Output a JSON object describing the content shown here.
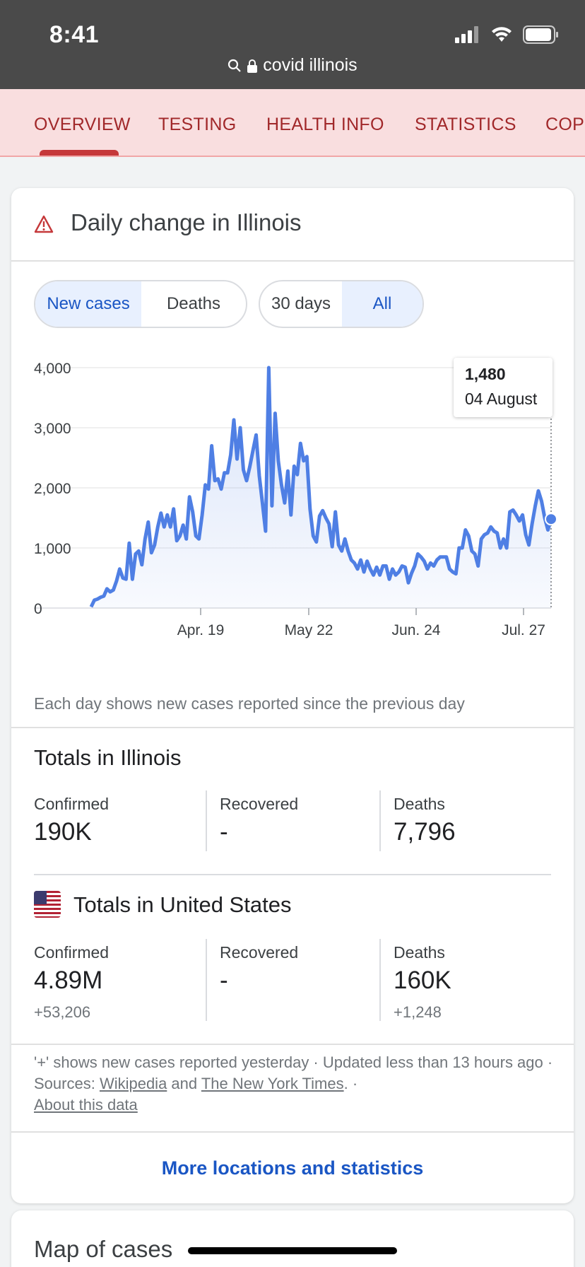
{
  "status": {
    "time": "8:41",
    "url": "covid illinois"
  },
  "tabs": [
    "OVERVIEW",
    "TESTING",
    "HEALTH INFO",
    "STATISTICS",
    "COPING"
  ],
  "card": {
    "title": "Daily change in Illinois",
    "toggle_metric": [
      "New cases",
      "Deaths"
    ],
    "toggle_range": [
      "30 days",
      "All"
    ],
    "tooltip": {
      "value": "1,480",
      "date": "04 August"
    },
    "note": "Each day shows new cases reported since the previous day"
  },
  "chart_data": {
    "type": "line",
    "title": "Daily change in Illinois",
    "ylim": [
      0,
      4000
    ],
    "yticks": [
      "4,000",
      "3,000",
      "2,000",
      "1,000",
      "0"
    ],
    "xticks": [
      "Apr. 19",
      "May 22",
      "Jun. 24",
      "Jul. 27"
    ],
    "series": [
      {
        "name": "New cases",
        "values": [
          20,
          130,
          150,
          180,
          200,
          320,
          270,
          300,
          450,
          650,
          500,
          480,
          1080,
          480,
          900,
          950,
          720,
          1150,
          1430,
          920,
          1050,
          1350,
          1580,
          1350,
          1550,
          1350,
          1650,
          1120,
          1200,
          1380,
          1150,
          1850,
          1600,
          1200,
          1150,
          1550,
          2050,
          1980,
          2700,
          2120,
          2150,
          1980,
          2250,
          2250,
          2550,
          3130,
          2480,
          3000,
          2300,
          2120,
          2350,
          2620,
          2880,
          2200,
          1750,
          1280,
          4000,
          1700,
          3240,
          2450,
          2050,
          1750,
          2280,
          1550,
          2360,
          2220,
          2740,
          2450,
          2520,
          1650,
          1200,
          1100,
          1530,
          1620,
          1500,
          1400,
          1020,
          1600,
          1050,
          950,
          1150,
          950,
          800,
          750,
          650,
          800,
          600,
          780,
          650,
          550,
          680,
          550,
          700,
          700,
          480,
          650,
          550,
          600,
          700,
          680,
          420,
          580,
          700,
          900,
          850,
          780,
          650,
          750,
          700,
          800,
          850,
          850,
          850,
          650,
          600,
          570,
          1000,
          1000,
          1300,
          1200,
          950,
          900,
          700,
          1150,
          1220,
          1250,
          1350,
          1280,
          1250,
          1000,
          1150,
          1000,
          1600,
          1630,
          1550,
          1450,
          1550,
          1220,
          1050,
          1400,
          1700,
          1950,
          1780,
          1500,
          1300,
          1480
        ]
      }
    ]
  },
  "illinois": {
    "title": "Totals in Illinois",
    "confirmed_label": "Confirmed",
    "confirmed": "190K",
    "recovered_label": "Recovered",
    "recovered": "-",
    "deaths_label": "Deaths",
    "deaths": "7,796"
  },
  "us": {
    "title": "Totals in United States",
    "confirmed_label": "Confirmed",
    "confirmed": "4.89M",
    "confirmed_delta": "+53,206",
    "recovered_label": "Recovered",
    "recovered": "-",
    "deaths_label": "Deaths",
    "deaths": "160K",
    "deaths_delta": "+1,248"
  },
  "footnote": {
    "text1": "'+' shows new cases reported yesterday · Updated less than 13 hours ago  ·  Sources: ",
    "link1": "Wikipedia",
    "and": " and ",
    "link2": "The New York Times",
    "text2": ".  ·  ",
    "link3": "About this data"
  },
  "more_link": "More locations and statistics",
  "map_title": "Map of cases",
  "colors": {
    "accent": "#1a56c4",
    "line": "#4f7fe4",
    "tab": "#a1282a"
  }
}
